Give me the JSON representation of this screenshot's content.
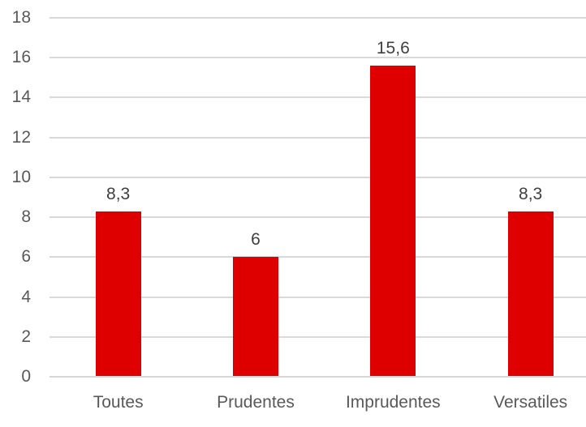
{
  "chart_data": {
    "type": "bar",
    "title": "",
    "xlabel": "",
    "ylabel": "",
    "categories": [
      "Toutes",
      "Prudentes",
      "Imprudentes",
      "Versatiles"
    ],
    "values": [
      8.3,
      6,
      15.6,
      8.3
    ],
    "value_labels": [
      "8,3",
      "6",
      "15,6",
      "8,3"
    ],
    "ylim": [
      0,
      18
    ],
    "yticks": [
      0,
      2,
      4,
      6,
      8,
      10,
      12,
      14,
      16,
      18
    ],
    "ytick_labels": [
      "0",
      "2",
      "4",
      "6",
      "8",
      "10",
      "12",
      "14",
      "16",
      "18"
    ],
    "grid": true,
    "legend": false,
    "bar_color": "#de0000",
    "gridline_color": "#d9d9d9",
    "axis_color": "#d6d6d6",
    "tick_label_color": "#595959",
    "value_label_color": "#404040"
  }
}
